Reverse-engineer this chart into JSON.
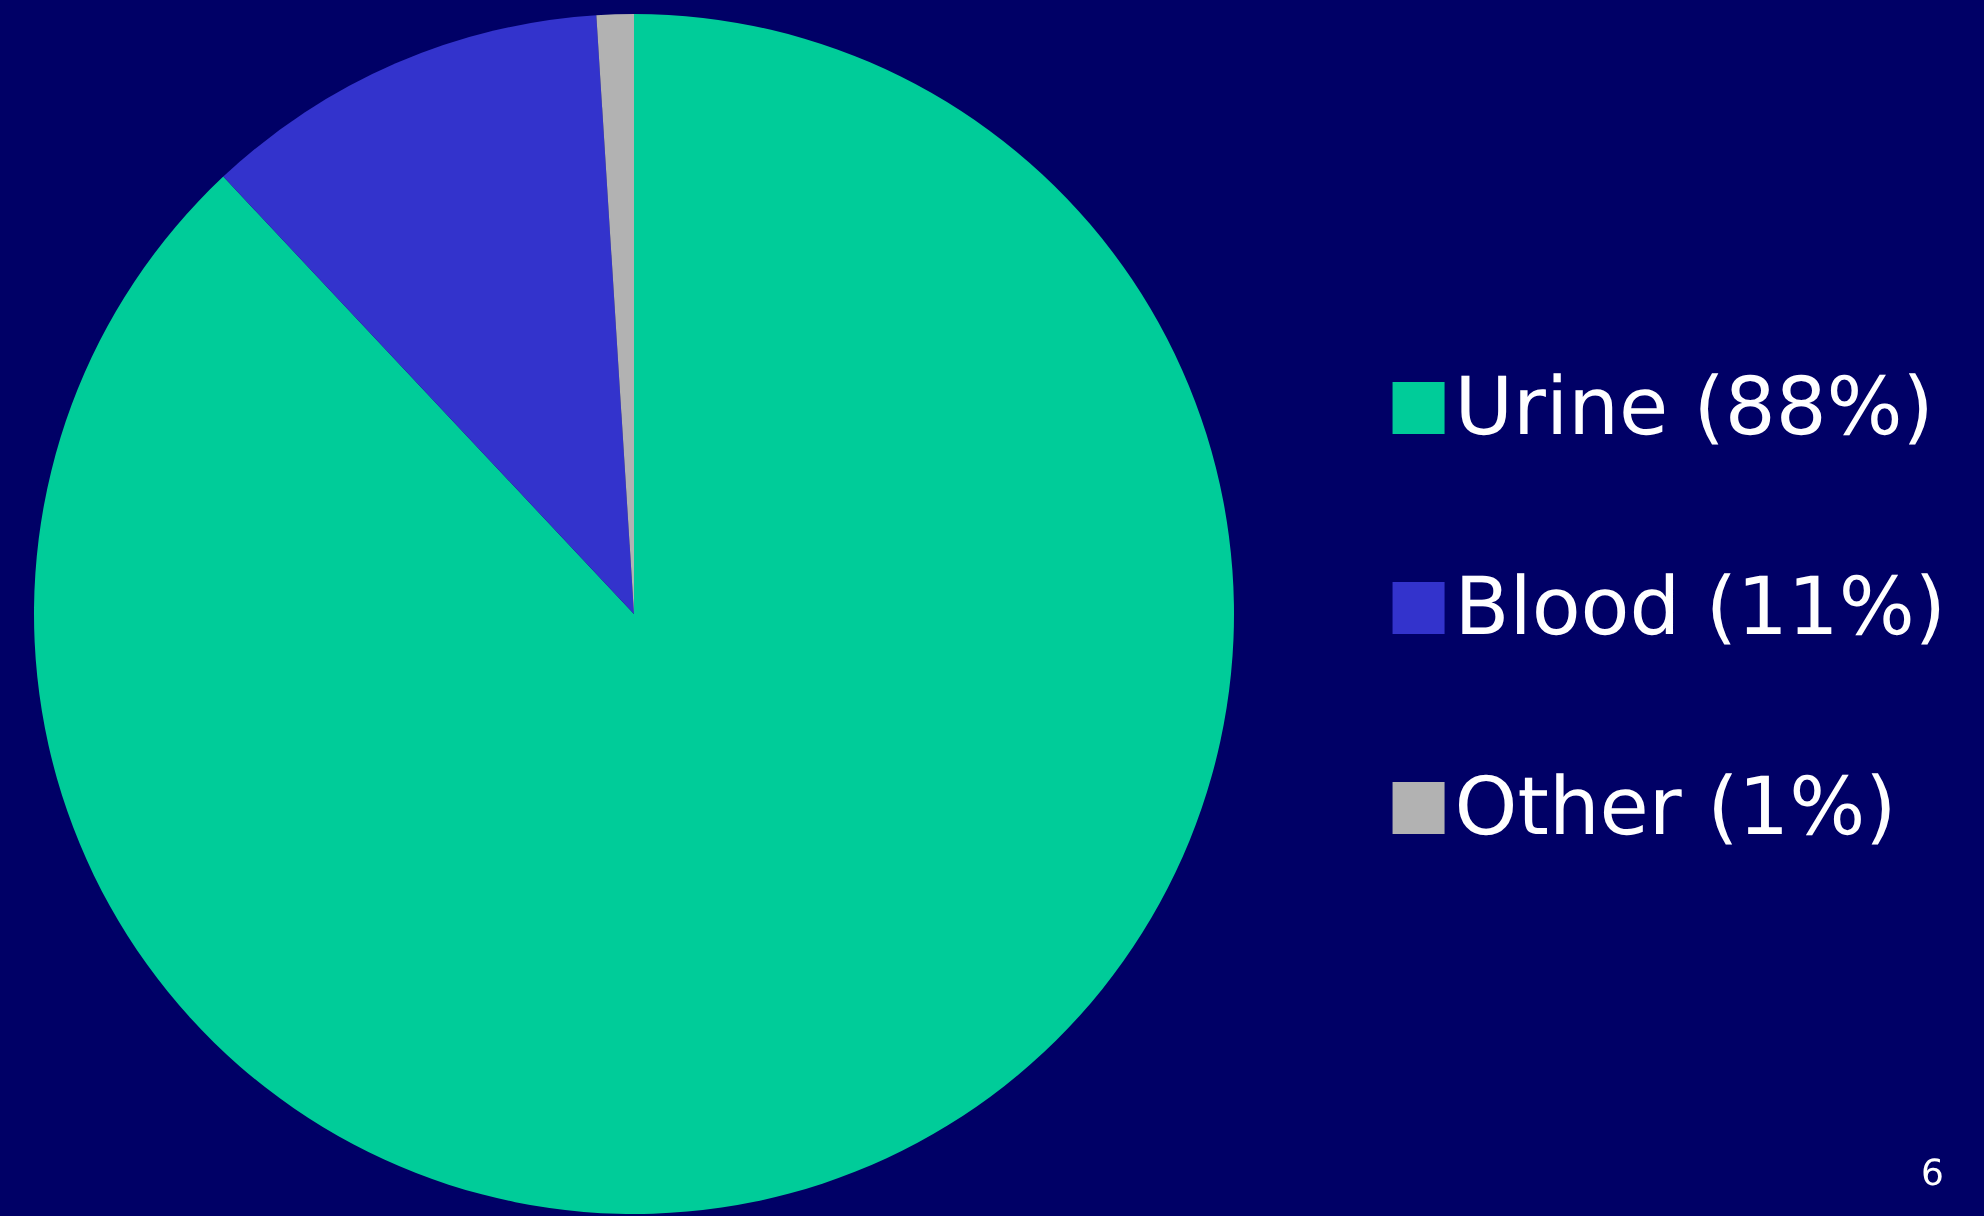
{
  "chart_data": {
    "type": "pie",
    "categories": [
      "Urine (88%)",
      "Blood (11%)",
      "Other (1%)"
    ],
    "values": [
      88,
      11,
      1
    ],
    "colors": [
      "#00cc99",
      "#3333cc",
      "#b2b2b2"
    ],
    "legend": "right",
    "annotations": [
      "6"
    ]
  }
}
